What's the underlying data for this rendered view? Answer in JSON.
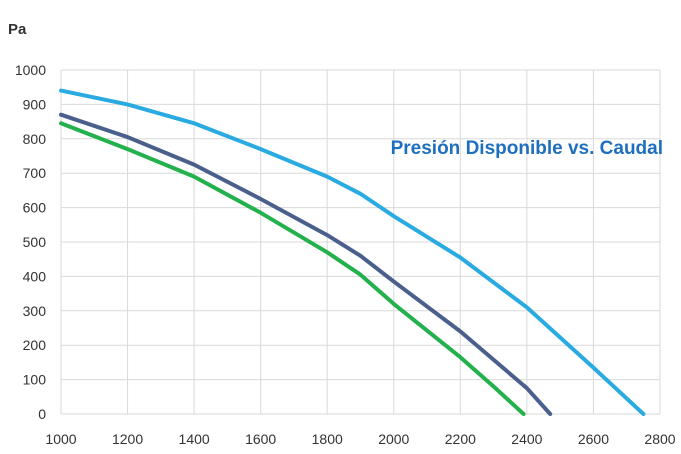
{
  "chart_data": {
    "type": "line",
    "title": "Presión Disponible vs. Caudal",
    "ylabel": "Pa",
    "xlabel": "",
    "xlim": [
      1000,
      2800
    ],
    "ylim": [
      0,
      1000
    ],
    "x_ticks": [
      1000,
      1200,
      1400,
      1600,
      1800,
      2000,
      2200,
      2400,
      2600,
      2800
    ],
    "y_ticks": [
      0,
      100,
      200,
      300,
      400,
      500,
      600,
      700,
      800,
      900,
      1000
    ],
    "grid": true,
    "legend": "none",
    "series": [
      {
        "color": "#29abe2",
        "x": [
          1000,
          1200,
          1400,
          1600,
          1800,
          1900,
          2000,
          2200,
          2400,
          2600,
          2750
        ],
        "y": [
          940,
          900,
          845,
          770,
          690,
          640,
          575,
          455,
          310,
          135,
          0
        ]
      },
      {
        "color": "#4a5f8c",
        "x": [
          1000,
          1200,
          1400,
          1600,
          1800,
          1900,
          2000,
          2200,
          2400,
          2470
        ],
        "y": [
          870,
          805,
          725,
          625,
          520,
          460,
          385,
          240,
          75,
          0
        ]
      },
      {
        "color": "#22b14c",
        "x": [
          1000,
          1200,
          1400,
          1600,
          1800,
          1900,
          2000,
          2200,
          2300,
          2390
        ],
        "y": [
          845,
          770,
          690,
          585,
          470,
          405,
          320,
          165,
          80,
          0
        ]
      }
    ]
  },
  "colors": {
    "title": "#1f6fbf",
    "grid": "#d9d9d9",
    "text": "#333333"
  }
}
